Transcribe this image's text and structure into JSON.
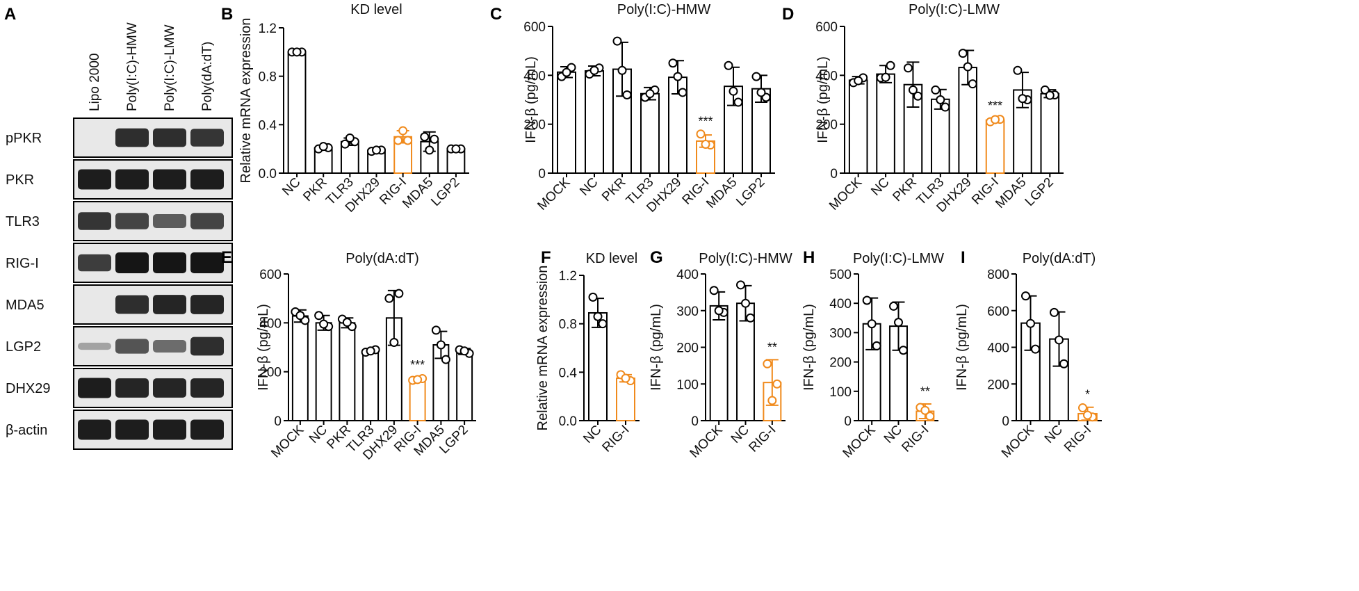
{
  "colors": {
    "black": "#000000",
    "orange": "#F08A1C",
    "blot_bg": "#e8e8e8",
    "band": "#151515"
  },
  "blot": {
    "letter": "A",
    "lanes": [
      "Lipo 2000",
      "Poly(I:C)-HMW",
      "Poly(I:C)-LMW",
      "Poly(dA:dT)"
    ],
    "rows": [
      {
        "label": "pPKR",
        "bands": [
          0.05,
          0.85,
          0.85,
          0.8
        ]
      },
      {
        "label": "PKR",
        "bands": [
          0.95,
          0.95,
          0.95,
          0.95
        ]
      },
      {
        "label": "TLR3",
        "bands": [
          0.8,
          0.7,
          0.55,
          0.7
        ]
      },
      {
        "label": "RIG-I",
        "bands": [
          0.75,
          1.0,
          1.0,
          1.0
        ]
      },
      {
        "label": "MDA5",
        "bands": [
          0.05,
          0.85,
          0.9,
          0.9
        ]
      },
      {
        "label": "LGP2",
        "bands": [
          0.1,
          0.6,
          0.45,
          0.85
        ]
      },
      {
        "label": "DHX29",
        "bands": [
          0.95,
          0.9,
          0.9,
          0.9
        ]
      },
      {
        "label": "β-actin",
        "bands": [
          0.95,
          0.95,
          0.95,
          0.95
        ]
      }
    ]
  },
  "chart_data": [
    {
      "letter": "B",
      "type": "bar",
      "title": "KD level",
      "ylabel": "Relative mRNA expression",
      "ylim": [
        0,
        1.2
      ],
      "yticks": [
        "0.0",
        "0.4",
        "0.8",
        "1.2"
      ],
      "ytickvals": [
        0,
        0.4,
        0.8,
        1.2
      ],
      "categories": [
        "NC",
        "PKR",
        "TLR3",
        "DHX29",
        "RIG-I",
        "MDA5",
        "LGP2"
      ],
      "values": [
        1.0,
        0.21,
        0.26,
        0.19,
        0.3,
        0.26,
        0.2
      ],
      "errors": [
        0.0,
        0.02,
        0.03,
        0.01,
        0.05,
        0.08,
        0.01
      ],
      "points": [
        [
          1.0,
          1.0,
          1.0
        ],
        [
          0.2,
          0.21,
          0.22
        ],
        [
          0.24,
          0.26,
          0.29
        ],
        [
          0.18,
          0.19,
          0.19
        ],
        [
          0.27,
          0.27,
          0.35
        ],
        [
          0.3,
          0.28,
          0.19
        ],
        [
          0.2,
          0.2,
          0.2
        ]
      ],
      "highlight": [
        4
      ],
      "significance": [
        "",
        "",
        "",
        "",
        "",
        "",
        ""
      ]
    },
    {
      "letter": "C",
      "type": "bar",
      "title": "Poly(I:C)-HMW",
      "ylabel": "IFN-β (pg/mL)",
      "ylim": [
        0,
        600
      ],
      "yticks": [
        "0",
        "200",
        "400",
        "600"
      ],
      "ytickvals": [
        0,
        200,
        400,
        600
      ],
      "categories": [
        "MOCK",
        "NC",
        "PKR",
        "TLR3",
        "DHX29",
        "RIG-I",
        "MDA5",
        "LGP2"
      ],
      "values": [
        413,
        418,
        425,
        325,
        392,
        131,
        355,
        345
      ],
      "errors": [
        22,
        20,
        110,
        25,
        68,
        25,
        78,
        55
      ],
      "points": [
        [
          395,
          432,
          412
        ],
        [
          405,
          430,
          420
        ],
        [
          540,
          320,
          420
        ],
        [
          310,
          340,
          325
        ],
        [
          450,
          330,
          395
        ],
        [
          160,
          115,
          118
        ],
        [
          440,
          290,
          335
        ],
        [
          395,
          310,
          330
        ]
      ],
      "highlight": [
        5
      ],
      "significance": [
        "",
        "",
        "",
        "",
        "",
        "***",
        "",
        ""
      ]
    },
    {
      "letter": "D",
      "type": "bar",
      "title": "Poly(I:C)-LMW",
      "ylabel": "IFN-β (pg/mL)",
      "ylim": [
        0,
        600
      ],
      "yticks": [
        "0",
        "200",
        "400",
        "600"
      ],
      "ytickvals": [
        0,
        200,
        400,
        600
      ],
      "categories": [
        "MOCK",
        "NC",
        "PKR",
        "TLR3",
        "DHX29",
        "RIG-I",
        "MDA5",
        "LGP2"
      ],
      "values": [
        380,
        405,
        362,
        302,
        432,
        217,
        340,
        325
      ],
      "errors": [
        15,
        35,
        92,
        40,
        70,
        8,
        72,
        16
      ],
      "points": [
        [
          370,
          390,
          378
        ],
        [
          390,
          440,
          392
        ],
        [
          430,
          315,
          340
        ],
        [
          340,
          270,
          300
        ],
        [
          490,
          365,
          435
        ],
        [
          210,
          220,
          219
        ],
        [
          420,
          300,
          305
        ],
        [
          340,
          320,
          318
        ]
      ],
      "highlight": [
        5
      ],
      "significance": [
        "",
        "",
        "",
        "",
        "",
        "***",
        "",
        ""
      ]
    },
    {
      "letter": "E",
      "type": "bar",
      "title": "Poly(dA:dT)",
      "ylabel": "IFN-β (pg/mL)",
      "ylim": [
        0,
        600
      ],
      "yticks": [
        "0",
        "200",
        "400",
        "600"
      ],
      "ytickvals": [
        0,
        200,
        400,
        600
      ],
      "categories": [
        "MOCK",
        "NC",
        "PKR",
        "TLR3",
        "DHX29",
        "RIG-I",
        "MDA5",
        "LGP2"
      ],
      "values": [
        428,
        400,
        400,
        285,
        420,
        168,
        310,
        283
      ],
      "errors": [
        25,
        30,
        20,
        8,
        112,
        8,
        55,
        12
      ],
      "points": [
        [
          445,
          410,
          430
        ],
        [
          430,
          385,
          395
        ],
        [
          415,
          385,
          402
        ],
        [
          280,
          290,
          285
        ],
        [
          500,
          520,
          320
        ],
        [
          165,
          172,
          168
        ],
        [
          370,
          250,
          310
        ],
        [
          290,
          275,
          285
        ]
      ],
      "highlight": [
        5
      ],
      "significance": [
        "",
        "",
        "",
        "",
        "",
        "***",
        "",
        ""
      ]
    },
    {
      "letter": "F",
      "type": "bar",
      "title": "KD level",
      "ylabel": "Relative mRNA expression",
      "ylim": [
        0,
        1.2
      ],
      "yticks": [
        "0.0",
        "0.4",
        "0.8",
        "1.2"
      ],
      "ytickvals": [
        0,
        0.4,
        0.8,
        1.2
      ],
      "categories": [
        "NC",
        "RIG-I"
      ],
      "values": [
        0.89,
        0.35
      ],
      "errors": [
        0.12,
        0.03
      ],
      "points": [
        [
          1.02,
          0.8,
          0.86
        ],
        [
          0.38,
          0.33,
          0.35
        ]
      ],
      "highlight": [
        1
      ],
      "significance": [
        "",
        ""
      ]
    },
    {
      "letter": "G",
      "type": "bar",
      "title": "Poly(I:C)-HMW",
      "ylabel": "IFN-β (pg/mL)",
      "ylim": [
        0,
        400
      ],
      "yticks": [
        "0",
        "100",
        "200",
        "300",
        "400"
      ],
      "ytickvals": [
        0,
        100,
        200,
        300,
        400
      ],
      "categories": [
        "MOCK",
        "NC",
        "RIG-I"
      ],
      "values": [
        313,
        320,
        104
      ],
      "errors": [
        38,
        48,
        62
      ],
      "points": [
        [
          355,
          295,
          300
        ],
        [
          370,
          280,
          320
        ],
        [
          155,
          100,
          55
        ]
      ],
      "highlight": [
        2
      ],
      "significance": [
        "",
        "",
        "**"
      ]
    },
    {
      "letter": "H",
      "type": "bar",
      "title": "Poly(I:C)-LMW",
      "ylabel": "IFN-β (pg/mL)",
      "ylim": [
        0,
        500
      ],
      "yticks": [
        "0",
        "100",
        "200",
        "300",
        "400",
        "500"
      ],
      "ytickvals": [
        0,
        100,
        200,
        300,
        400,
        500
      ],
      "categories": [
        "MOCK",
        "NC",
        "RIG-I"
      ],
      "values": [
        330,
        322,
        32
      ],
      "errors": [
        88,
        82,
        25
      ],
      "points": [
        [
          410,
          255,
          330
        ],
        [
          390,
          240,
          335
        ],
        [
          45,
          15,
          35
        ]
      ],
      "highlight": [
        2
      ],
      "significance": [
        "",
        "",
        "**"
      ]
    },
    {
      "letter": "I",
      "type": "bar",
      "title": "Poly(dA:dT)",
      "ylabel": "IFN-β (pg/mL)",
      "ylim": [
        0,
        800
      ],
      "yticks": [
        "0",
        "200",
        "400",
        "600",
        "800"
      ],
      "ytickvals": [
        0,
        200,
        400,
        600,
        800
      ],
      "categories": [
        "MOCK",
        "NC",
        "RIG-I"
      ],
      "values": [
        532,
        445,
        38
      ],
      "errors": [
        148,
        148,
        35
      ],
      "points": [
        [
          680,
          390,
          530
        ],
        [
          590,
          310,
          440
        ],
        [
          70,
          20,
          30
        ]
      ],
      "highlight": [
        2
      ],
      "significance": [
        "",
        "",
        "*"
      ]
    }
  ]
}
